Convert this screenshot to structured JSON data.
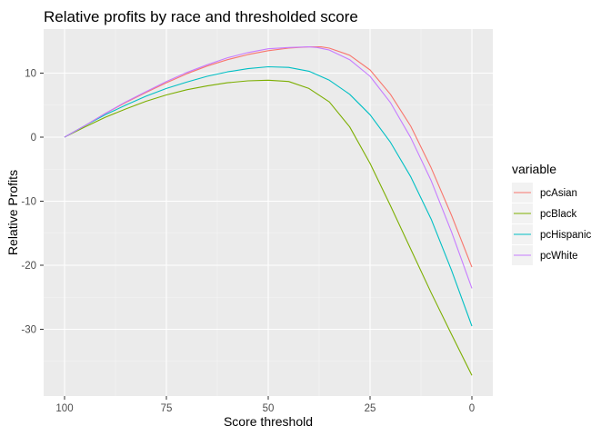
{
  "chart_data": {
    "type": "line",
    "title": "Relative profits by race and thresholded score",
    "xlabel": "Score threshold",
    "ylabel": "Relative Profits",
    "xlim": [
      100,
      0
    ],
    "ylim": [
      -40,
      16
    ],
    "x_reversed": true,
    "x_ticks": [
      100,
      75,
      50,
      25,
      0
    ],
    "y_ticks": [
      10,
      0,
      -10,
      -20,
      -30
    ],
    "grid": true,
    "legend": {
      "title": "variable",
      "placement": "right"
    },
    "background": "#ebebeb",
    "series": [
      {
        "name": "pcAsian",
        "color": "#F8766D",
        "x": [
          100,
          95,
          90,
          85,
          80,
          75,
          70,
          65,
          60,
          55,
          50,
          45,
          40,
          37,
          35,
          30,
          25,
          20,
          15,
          10,
          5,
          0
        ],
        "y": [
          0,
          1.8,
          3.7,
          5.4,
          7.0,
          8.5,
          9.9,
          11.1,
          12.1,
          12.9,
          13.5,
          13.9,
          14.1,
          14.1,
          13.9,
          12.8,
          10.5,
          6.7,
          1.7,
          -4.8,
          -12.2,
          -20.3
        ]
      },
      {
        "name": "pcBlack",
        "color": "#7CAE00",
        "x": [
          100,
          95,
          90,
          85,
          80,
          75,
          70,
          65,
          60,
          55,
          50,
          45,
          40,
          35,
          30,
          25,
          20,
          15,
          10,
          5,
          0
        ],
        "y": [
          0,
          1.6,
          3.1,
          4.4,
          5.6,
          6.6,
          7.4,
          8.0,
          8.5,
          8.8,
          8.9,
          8.7,
          7.6,
          5.5,
          1.6,
          -4.1,
          -10.7,
          -17.5,
          -24.3,
          -30.8,
          -37.2
        ]
      },
      {
        "name": "pcHispanic",
        "color": "#00BFC4",
        "x": [
          100,
          95,
          90,
          85,
          80,
          75,
          70,
          65,
          60,
          55,
          50,
          45,
          40,
          35,
          30,
          25,
          20,
          15,
          10,
          5,
          0
        ],
        "y": [
          0,
          1.8,
          3.5,
          5.0,
          6.4,
          7.6,
          8.6,
          9.5,
          10.2,
          10.7,
          11.0,
          10.9,
          10.3,
          8.9,
          6.7,
          3.5,
          -0.8,
          -6.2,
          -12.8,
          -20.8,
          -29.5
        ]
      },
      {
        "name": "pcWhite",
        "color": "#C77CFF",
        "x": [
          100,
          95,
          90,
          85,
          80,
          75,
          70,
          65,
          60,
          55,
          50,
          45,
          40,
          38,
          35,
          30,
          25,
          20,
          15,
          10,
          5,
          0
        ],
        "y": [
          0,
          1.8,
          3.7,
          5.5,
          7.1,
          8.7,
          10.1,
          11.3,
          12.4,
          13.2,
          13.8,
          14.0,
          14.1,
          14.0,
          13.6,
          12.1,
          9.5,
          5.4,
          -0.1,
          -6.8,
          -14.8,
          -23.6
        ]
      }
    ]
  }
}
